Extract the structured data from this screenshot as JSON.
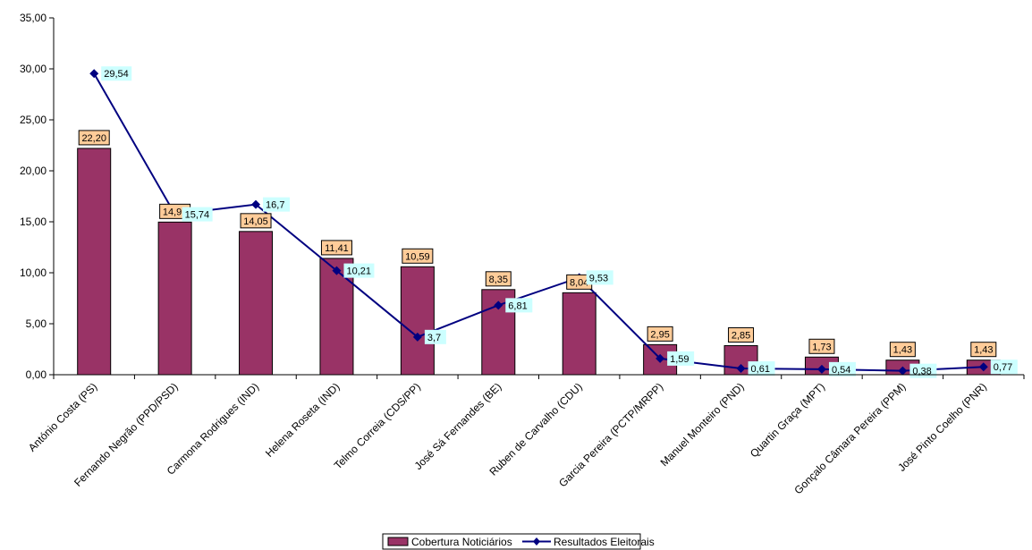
{
  "chart_data": {
    "type": "bar",
    "categories": [
      "António Costa (PS)",
      "Fernando Negrão (PPD/PSD)",
      "Carmona Rodrigues (IND)",
      "Helena Roseta (IND)",
      "Telmo Correia (CDS/PP)",
      "José Sá Fernandes (BE)",
      "Ruben de Carvalho (CDU)",
      "Garcia Pereira (PCTP/MRPP)",
      "Manuel Monteiro (PND)",
      "Quartin Graça (MPT)",
      "Gonçalo Câmara Pereira (PPM)",
      "José Pinto Coelho (PNR)"
    ],
    "series": [
      {
        "name": "Cobertura Noticiários",
        "type": "bar",
        "color": "#993366",
        "values": [
          22.2,
          14.97,
          14.05,
          11.41,
          10.59,
          8.35,
          8.04,
          2.95,
          2.85,
          1.73,
          1.43,
          1.43
        ],
        "labels": [
          "22,20",
          "14,97",
          "14,05",
          "11,41",
          "10,59",
          "8,35",
          "8,04",
          "2,95",
          "2,85",
          "1,73",
          "1,43",
          "1,43"
        ]
      },
      {
        "name": "Resultados Eleitorais",
        "type": "line",
        "color": "#000080",
        "values": [
          29.54,
          15.74,
          16.7,
          10.21,
          3.7,
          6.81,
          9.53,
          1.59,
          0.61,
          0.54,
          0.38,
          0.77
        ],
        "labels": [
          "29,54",
          "15,74",
          "16,7",
          "10,21",
          "3,7",
          "6,81",
          "9,53",
          "1,59",
          "0,61",
          "0,54",
          "0,38",
          "0,77"
        ]
      }
    ],
    "ylim": [
      0,
      35
    ],
    "yticks": [
      "0,00",
      "5,00",
      "10,00",
      "15,00",
      "20,00",
      "25,00",
      "30,00",
      "35,00"
    ],
    "legend_position": "bottom-center",
    "grid": false,
    "bar_label_bg": "#FFCC99",
    "line_label_bg": "#CCFFFF"
  }
}
